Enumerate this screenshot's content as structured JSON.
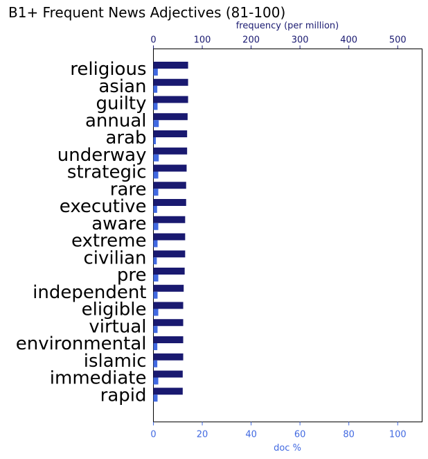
{
  "chart_data": {
    "type": "bar",
    "orientation": "horizontal",
    "title": "B1+ Frequent News Adjectives (81-100)",
    "categories": [
      "religious",
      "asian",
      "guilty",
      "annual",
      "arab",
      "underway",
      "strategic",
      "rare",
      "executive",
      "aware",
      "extreme",
      "civilian",
      "pre",
      "independent",
      "eligible",
      "virtual",
      "environmental",
      "islamic",
      "immediate",
      "rapid"
    ],
    "series": [
      {
        "name": "frequency (per million)",
        "axis": "top",
        "color": "#191970",
        "values": [
          71,
          71,
          71,
          70,
          69,
          69,
          68,
          67,
          67,
          65,
          65,
          65,
          64,
          62,
          61,
          61,
          61,
          61,
          60,
          60
        ]
      },
      {
        "name": "doc %",
        "axis": "bottom",
        "color": "#4169e1",
        "values": [
          1.8,
          1.6,
          1.7,
          2.2,
          1.0,
          2.2,
          2.0,
          2.0,
          1.5,
          2.0,
          1.7,
          1.4,
          2.0,
          1.7,
          2.0,
          1.7,
          1.6,
          1.6,
          2.0,
          1.7
        ]
      }
    ],
    "top_axis": {
      "label": "frequency (per million)",
      "range": [
        0,
        550
      ],
      "ticks": [
        "0",
        "100",
        "200",
        "300",
        "400",
        "500"
      ]
    },
    "bottom_axis": {
      "label": "doc %",
      "range": [
        0,
        110
      ],
      "ticks": [
        "0",
        "20",
        "40",
        "60",
        "80",
        "100"
      ]
    },
    "grid": false,
    "legend": "none"
  }
}
